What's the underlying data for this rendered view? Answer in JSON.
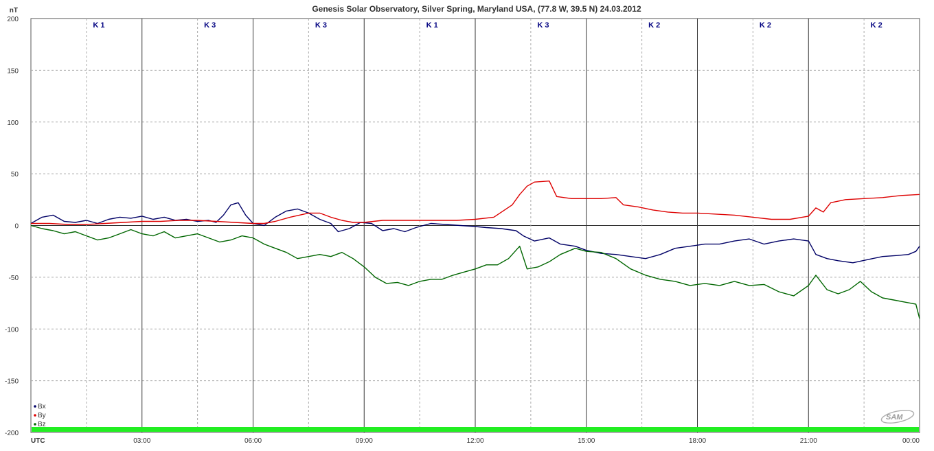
{
  "chart_data": {
    "type": "line",
    "title": "Genesis Solar Observatory, Silver Spring, Maryland USA, (77.8 W, 39.5 N)  24.03.2012",
    "ylabel": "nT",
    "xlabel": "UTC",
    "ylim": [
      -200,
      200
    ],
    "xlim": [
      0,
      24
    ],
    "y_ticks": [
      "200",
      "150",
      "100",
      "50",
      "0",
      "-50",
      "-100",
      "-150",
      "-200"
    ],
    "y_tick_values": [
      200,
      150,
      100,
      50,
      0,
      -50,
      -100,
      -150,
      -200
    ],
    "x_ticks": [
      "03:00",
      "06:00",
      "09:00",
      "12:00",
      "15:00",
      "18:00",
      "21:00",
      "00:00"
    ],
    "x_tick_values": [
      3,
      6,
      9,
      12,
      15,
      18,
      21,
      24
    ],
    "grid": true,
    "legend_placement": "bottom-left",
    "k_index": [
      "K 1",
      "K 3",
      "K 3",
      "K 1",
      "K 3",
      "K 2",
      "K 2",
      "K 2"
    ],
    "series": [
      {
        "name": "Bx",
        "color": "#000066",
        "points": [
          [
            0,
            2
          ],
          [
            0.3,
            8
          ],
          [
            0.6,
            10
          ],
          [
            0.9,
            4
          ],
          [
            1.2,
            3
          ],
          [
            1.5,
            5
          ],
          [
            1.8,
            2
          ],
          [
            2.1,
            6
          ],
          [
            2.4,
            8
          ],
          [
            2.7,
            7
          ],
          [
            3.0,
            9
          ],
          [
            3.3,
            6
          ],
          [
            3.6,
            8
          ],
          [
            3.9,
            5
          ],
          [
            4.2,
            6
          ],
          [
            4.5,
            4
          ],
          [
            4.8,
            5
          ],
          [
            5.0,
            3
          ],
          [
            5.2,
            10
          ],
          [
            5.4,
            20
          ],
          [
            5.6,
            22
          ],
          [
            5.8,
            10
          ],
          [
            6.0,
            2
          ],
          [
            6.3,
            0
          ],
          [
            6.6,
            8
          ],
          [
            6.9,
            14
          ],
          [
            7.2,
            16
          ],
          [
            7.5,
            12
          ],
          [
            7.8,
            6
          ],
          [
            8.1,
            2
          ],
          [
            8.3,
            -6
          ],
          [
            8.6,
            -3
          ],
          [
            8.9,
            3
          ],
          [
            9.2,
            2
          ],
          [
            9.5,
            -5
          ],
          [
            9.8,
            -3
          ],
          [
            10.1,
            -6
          ],
          [
            10.4,
            -2
          ],
          [
            10.8,
            2
          ],
          [
            11.2,
            1
          ],
          [
            11.6,
            0
          ],
          [
            12.0,
            -1
          ],
          [
            12.3,
            -2
          ],
          [
            12.7,
            -3
          ],
          [
            13.1,
            -5
          ],
          [
            13.3,
            -10
          ],
          [
            13.6,
            -15
          ],
          [
            14.0,
            -12
          ],
          [
            14.3,
            -18
          ],
          [
            14.7,
            -20
          ],
          [
            15.0,
            -24
          ],
          [
            15.4,
            -27
          ],
          [
            15.8,
            -28
          ],
          [
            16.2,
            -30
          ],
          [
            16.6,
            -32
          ],
          [
            17.0,
            -28
          ],
          [
            17.4,
            -22
          ],
          [
            17.8,
            -20
          ],
          [
            18.2,
            -18
          ],
          [
            18.6,
            -18
          ],
          [
            19.0,
            -15
          ],
          [
            19.4,
            -13
          ],
          [
            19.8,
            -18
          ],
          [
            20.2,
            -15
          ],
          [
            20.6,
            -13
          ],
          [
            21.0,
            -15
          ],
          [
            21.2,
            -28
          ],
          [
            21.5,
            -32
          ],
          [
            21.8,
            -34
          ],
          [
            22.2,
            -36
          ],
          [
            22.6,
            -33
          ],
          [
            23.0,
            -30
          ],
          [
            23.4,
            -29
          ],
          [
            23.7,
            -28
          ],
          [
            23.9,
            -25
          ],
          [
            24.0,
            -20
          ]
        ]
      },
      {
        "name": "By",
        "color": "#dd0000",
        "points": [
          [
            0,
            2
          ],
          [
            0.5,
            2
          ],
          [
            1.0,
            1
          ],
          [
            1.5,
            1
          ],
          [
            2.0,
            2
          ],
          [
            2.5,
            3
          ],
          [
            3.0,
            4
          ],
          [
            3.5,
            4
          ],
          [
            4.0,
            5
          ],
          [
            4.5,
            5
          ],
          [
            5.0,
            4
          ],
          [
            5.5,
            3
          ],
          [
            6.0,
            2
          ],
          [
            6.3,
            2
          ],
          [
            6.6,
            4
          ],
          [
            7.0,
            8
          ],
          [
            7.5,
            12
          ],
          [
            7.8,
            12
          ],
          [
            8.1,
            8
          ],
          [
            8.4,
            5
          ],
          [
            8.7,
            3
          ],
          [
            9.0,
            3
          ],
          [
            9.5,
            5
          ],
          [
            10.0,
            5
          ],
          [
            10.5,
            5
          ],
          [
            11.0,
            5
          ],
          [
            11.5,
            5
          ],
          [
            12.0,
            6
          ],
          [
            12.5,
            8
          ],
          [
            13.0,
            20
          ],
          [
            13.2,
            30
          ],
          [
            13.4,
            38
          ],
          [
            13.6,
            42
          ],
          [
            14.0,
            43
          ],
          [
            14.2,
            28
          ],
          [
            14.6,
            26
          ],
          [
            15.0,
            26
          ],
          [
            15.4,
            26
          ],
          [
            15.8,
            27
          ],
          [
            16.0,
            20
          ],
          [
            16.4,
            18
          ],
          [
            16.8,
            15
          ],
          [
            17.2,
            13
          ],
          [
            17.6,
            12
          ],
          [
            18.0,
            12
          ],
          [
            18.5,
            11
          ],
          [
            19.0,
            10
          ],
          [
            19.5,
            8
          ],
          [
            20.0,
            6
          ],
          [
            20.5,
            6
          ],
          [
            21.0,
            9
          ],
          [
            21.2,
            17
          ],
          [
            21.4,
            13
          ],
          [
            21.6,
            22
          ],
          [
            22.0,
            25
          ],
          [
            22.5,
            26
          ],
          [
            23.0,
            27
          ],
          [
            23.5,
            29
          ],
          [
            24.0,
            30
          ]
        ]
      },
      {
        "name": "Bz",
        "color": "#006600",
        "points": [
          [
            0,
            0
          ],
          [
            0.3,
            -3
          ],
          [
            0.6,
            -5
          ],
          [
            0.9,
            -8
          ],
          [
            1.2,
            -6
          ],
          [
            1.5,
            -10
          ],
          [
            1.8,
            -14
          ],
          [
            2.1,
            -12
          ],
          [
            2.4,
            -8
          ],
          [
            2.7,
            -4
          ],
          [
            3.0,
            -8
          ],
          [
            3.3,
            -10
          ],
          [
            3.6,
            -6
          ],
          [
            3.9,
            -12
          ],
          [
            4.2,
            -10
          ],
          [
            4.5,
            -8
          ],
          [
            4.8,
            -12
          ],
          [
            5.1,
            -16
          ],
          [
            5.4,
            -14
          ],
          [
            5.7,
            -10
          ],
          [
            6.0,
            -12
          ],
          [
            6.3,
            -18
          ],
          [
            6.6,
            -22
          ],
          [
            6.9,
            -26
          ],
          [
            7.2,
            -32
          ],
          [
            7.5,
            -30
          ],
          [
            7.8,
            -28
          ],
          [
            8.1,
            -30
          ],
          [
            8.4,
            -26
          ],
          [
            8.7,
            -32
          ],
          [
            9.0,
            -40
          ],
          [
            9.3,
            -50
          ],
          [
            9.6,
            -56
          ],
          [
            9.9,
            -55
          ],
          [
            10.2,
            -58
          ],
          [
            10.5,
            -54
          ],
          [
            10.8,
            -52
          ],
          [
            11.1,
            -52
          ],
          [
            11.4,
            -48
          ],
          [
            11.7,
            -45
          ],
          [
            12.0,
            -42
          ],
          [
            12.3,
            -38
          ],
          [
            12.6,
            -38
          ],
          [
            12.9,
            -32
          ],
          [
            13.2,
            -20
          ],
          [
            13.4,
            -42
          ],
          [
            13.7,
            -40
          ],
          [
            14.0,
            -35
          ],
          [
            14.3,
            -28
          ],
          [
            14.7,
            -22
          ],
          [
            15.0,
            -25
          ],
          [
            15.4,
            -26
          ],
          [
            15.8,
            -32
          ],
          [
            16.2,
            -42
          ],
          [
            16.6,
            -48
          ],
          [
            17.0,
            -52
          ],
          [
            17.4,
            -54
          ],
          [
            17.8,
            -58
          ],
          [
            18.2,
            -56
          ],
          [
            18.6,
            -58
          ],
          [
            19.0,
            -54
          ],
          [
            19.4,
            -58
          ],
          [
            19.8,
            -57
          ],
          [
            20.2,
            -64
          ],
          [
            20.6,
            -68
          ],
          [
            21.0,
            -58
          ],
          [
            21.2,
            -48
          ],
          [
            21.5,
            -62
          ],
          [
            21.8,
            -66
          ],
          [
            22.1,
            -62
          ],
          [
            22.4,
            -54
          ],
          [
            22.7,
            -64
          ],
          [
            23.0,
            -70
          ],
          [
            23.3,
            -72
          ],
          [
            23.6,
            -74
          ],
          [
            23.9,
            -76
          ],
          [
            24.0,
            -90
          ]
        ]
      }
    ]
  },
  "logo_text": "SAM"
}
